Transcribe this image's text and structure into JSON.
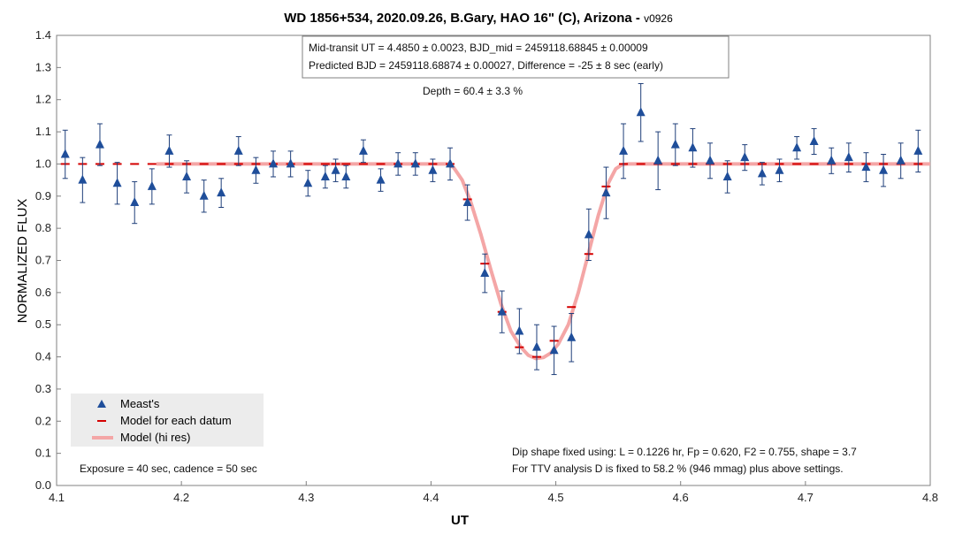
{
  "chart_data": {
    "type": "scatter",
    "title": "WD 1856+534, 2020.09.26, B.Gary, HAO 16\" (C), Arizona - ",
    "version": "v0926",
    "xlabel": "UT",
    "ylabel": "NORMALIZED FLUX",
    "xlim": [
      4.1,
      4.8
    ],
    "ylim": [
      0.0,
      1.4
    ],
    "xticks": [
      "4.1",
      "4.2",
      "4.3",
      "4.4",
      "4.5",
      "4.6",
      "4.7",
      "4.8"
    ],
    "yticks": [
      "0.0",
      "0.1",
      "0.2",
      "0.3",
      "0.4",
      "0.5",
      "0.6",
      "0.7",
      "0.8",
      "0.9",
      "1.0",
      "1.1",
      "1.2",
      "1.3",
      "1.4"
    ],
    "grid": false,
    "legend_position": "bottom-left",
    "colors": {
      "measured": "#1f4e9a",
      "model_datum": "#d40000",
      "model_hires": "#f4a6a6",
      "errorbar": "#1f3f7a"
    },
    "series": [
      {
        "name": "Meast's",
        "kind": "markers-with-errorbars",
        "x": [
          4.1069,
          4.1208,
          4.1347,
          4.1486,
          4.1625,
          4.1764,
          4.1903,
          4.2042,
          4.2181,
          4.2319,
          4.2458,
          4.2597,
          4.2736,
          4.2875,
          4.3014,
          4.3153,
          4.3236,
          4.3319,
          4.3458,
          4.3597,
          4.3736,
          4.3875,
          4.4014,
          4.4153,
          4.4292,
          4.4431,
          4.4569,
          4.4708,
          4.4847,
          4.4986,
          4.5125,
          4.5264,
          4.5403,
          4.5542,
          4.5681,
          4.5819,
          4.5958,
          4.6097,
          4.6236,
          4.6375,
          4.6514,
          4.6653,
          4.6792,
          4.6931,
          4.7069,
          4.7208,
          4.7347,
          4.7486,
          4.7625,
          4.7764,
          4.7903
        ],
        "y": [
          1.03,
          0.95,
          1.06,
          0.94,
          0.88,
          0.93,
          1.04,
          0.96,
          0.9,
          0.91,
          1.04,
          0.98,
          1.0,
          1.0,
          0.94,
          0.96,
          0.98,
          0.96,
          1.04,
          0.95,
          1.0,
          1.0,
          0.98,
          1.0,
          0.88,
          0.66,
          0.54,
          0.48,
          0.43,
          0.42,
          0.46,
          0.78,
          0.91,
          1.04,
          1.16,
          1.01,
          1.06,
          1.05,
          1.01,
          0.96,
          1.02,
          0.97,
          0.98,
          1.05,
          1.07,
          1.01,
          1.02,
          0.99,
          0.98,
          1.01,
          1.04
        ],
        "yerr": [
          0.075,
          0.07,
          0.065,
          0.065,
          0.065,
          0.055,
          0.05,
          0.05,
          0.05,
          0.045,
          0.045,
          0.04,
          0.04,
          0.04,
          0.04,
          0.035,
          0.035,
          0.035,
          0.035,
          0.035,
          0.035,
          0.035,
          0.035,
          0.05,
          0.055,
          0.06,
          0.065,
          0.07,
          0.07,
          0.075,
          0.075,
          0.08,
          0.08,
          0.085,
          0.09,
          0.09,
          0.065,
          0.06,
          0.055,
          0.05,
          0.04,
          0.035,
          0.035,
          0.035,
          0.04,
          0.04,
          0.045,
          0.045,
          0.05,
          0.055,
          0.065
        ]
      },
      {
        "name": "Model for each datum",
        "kind": "dashes",
        "x": [
          4.1069,
          4.1208,
          4.1347,
          4.1486,
          4.1625,
          4.1764,
          4.1903,
          4.2042,
          4.2181,
          4.2319,
          4.2458,
          4.2597,
          4.2736,
          4.2875,
          4.3014,
          4.3153,
          4.3236,
          4.3319,
          4.3458,
          4.3597,
          4.3736,
          4.3875,
          4.4014,
          4.4153,
          4.4292,
          4.4431,
          4.4569,
          4.4708,
          4.4847,
          4.4986,
          4.5125,
          4.5264,
          4.5403,
          4.5542,
          4.5681,
          4.5819,
          4.5958,
          4.6097,
          4.6236,
          4.6375,
          4.6514,
          4.6653,
          4.6792,
          4.6931,
          4.7069,
          4.7208,
          4.7347,
          4.7486,
          4.7625,
          4.7764,
          4.7903
        ],
        "y": [
          1.0,
          1.0,
          1.0,
          1.0,
          1.0,
          1.0,
          1.0,
          1.0,
          1.0,
          1.0,
          1.0,
          1.0,
          1.0,
          1.0,
          1.0,
          1.0,
          1.0,
          1.0,
          1.0,
          1.0,
          1.0,
          1.0,
          1.0,
          1.0,
          0.89,
          0.69,
          0.54,
          0.43,
          0.4,
          0.45,
          0.555,
          0.72,
          0.93,
          1.0,
          1.0,
          1.0,
          1.0,
          1.0,
          1.0,
          1.0,
          1.0,
          1.0,
          1.0,
          1.0,
          1.0,
          1.0,
          1.0,
          1.0,
          1.0,
          1.0,
          1.0
        ]
      },
      {
        "name": "Model (hi res)",
        "kind": "line",
        "x": [
          4.18,
          4.413,
          4.418,
          4.425,
          4.432,
          4.44,
          4.448,
          4.456,
          4.464,
          4.472,
          4.478,
          4.484,
          4.49,
          4.496,
          4.502,
          4.51,
          4.518,
          4.526,
          4.534,
          4.542,
          4.548,
          4.553,
          4.558,
          4.8
        ],
        "y": [
          1.0,
          1.0,
          0.99,
          0.95,
          0.88,
          0.78,
          0.67,
          0.565,
          0.48,
          0.43,
          0.405,
          0.395,
          0.398,
          0.412,
          0.44,
          0.5,
          0.6,
          0.72,
          0.84,
          0.94,
          0.985,
          0.998,
          1.0,
          1.0
        ]
      }
    ],
    "annotations": {
      "box_line1": "Mid-transit UT = 4.4850 ± 0.0023, BJD_mid = 2459118.68845 ± 0.00009",
      "box_line2": "Predicted BJD = 2459118.68874 ± 0.00027, Difference = -25 ± 8 sec (early)",
      "depth": "Depth = 60.4 ± 3.3 %",
      "exposure": "Exposure = 40 sec, cadence = 50 sec",
      "dip_line1": "Dip shape fixed using:  L = 0.1226 hr, Fp = 0.620, F2 = 0.755, shape = 3.7",
      "dip_line2": "For TTV analysis D is fixed  to 58.2 % (946 mmag) plus above settings."
    }
  }
}
